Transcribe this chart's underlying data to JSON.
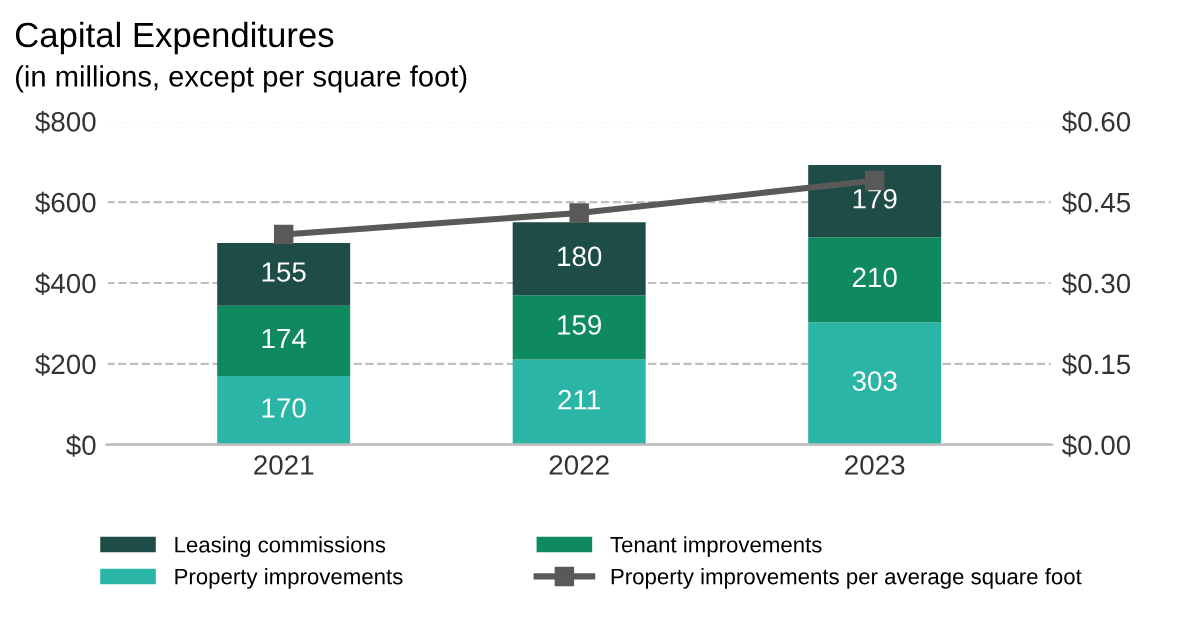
{
  "chart_data": {
    "type": "bar",
    "title": "Capital Expenditures",
    "subtitle": "(in millions, except per square foot)",
    "categories": [
      "2021",
      "2022",
      "2023"
    ],
    "stacked": true,
    "series": [
      {
        "name": "Property improvements",
        "color": "#2bb5a7",
        "values": [
          170,
          211,
          303
        ],
        "value_labels": [
          "170",
          "211",
          "303"
        ]
      },
      {
        "name": "Tenant improvements",
        "color": "#0f8a5f",
        "values": [
          174,
          159,
          210
        ],
        "value_labels": [
          "174",
          "159",
          "210"
        ]
      },
      {
        "name": "Leasing commissions",
        "color": "#1e4d47",
        "values": [
          155,
          180,
          179
        ],
        "value_labels": [
          "155",
          "180",
          "179"
        ]
      },
      {
        "name": "Property improvements per average square foot",
        "type": "line",
        "axis": "y2",
        "color": "#595959",
        "marker": "square",
        "values": [
          0.39,
          0.43,
          0.49
        ]
      }
    ],
    "ylim": [
      0,
      800
    ],
    "yticks": [
      {
        "value": 0,
        "label": "$0"
      },
      {
        "value": 200,
        "label": "$200"
      },
      {
        "value": 400,
        "label": "$400"
      },
      {
        "value": 600,
        "label": "$600"
      },
      {
        "value": 800,
        "label": "$800"
      }
    ],
    "y2lim": [
      0,
      0.6
    ],
    "y2ticks": [
      {
        "value": 0,
        "label": "$0.00"
      },
      {
        "value": 0.15,
        "label": "$0.15"
      },
      {
        "value": 0.3,
        "label": "$0.30"
      },
      {
        "value": 0.45,
        "label": "$0.45"
      },
      {
        "value": 0.6,
        "label": "$0.60"
      }
    ],
    "grid": "y",
    "legend": "bottom"
  }
}
